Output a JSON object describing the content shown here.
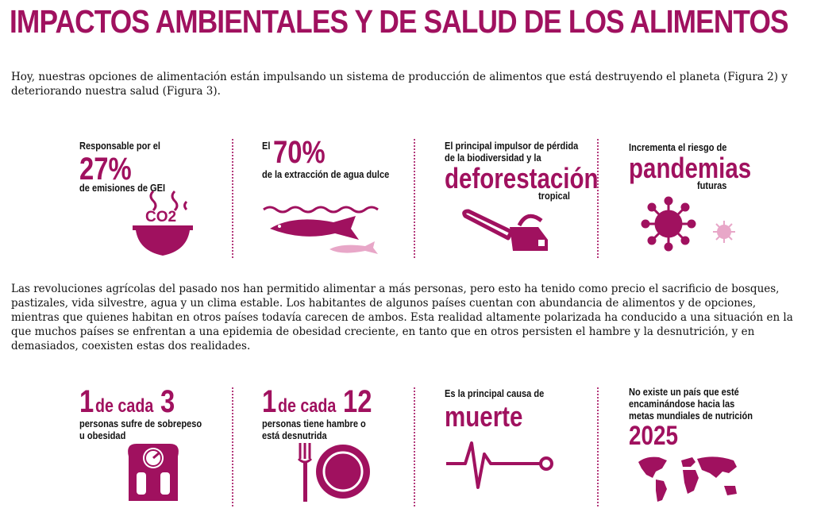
{
  "title": "IMPACTOS AMBIENTALES Y DE SALUD DE LOS ALIMENTOS",
  "intro": "Hoy, nuestras opciones de alimentación están impulsando un sistema de producción de alimentos que está destruyendo el planeta (Figura 2) y deteriorando nuestra salud (Figura 3).",
  "env": {
    "ghg": {
      "pre": "Responsable por el",
      "big": "27%",
      "post": "de emisiones de GEI",
      "icon": "bowl-co2-icon",
      "icon_text": "CO2"
    },
    "water": {
      "pre": "El",
      "big": "70%",
      "post": "de la extracción de agua dulce",
      "icon": "fish-icon"
    },
    "biodiversity": {
      "pre1": "El principal impulsor de pérdida",
      "pre2": "de la biodiversidad y la",
      "big": "deforestación",
      "post": "tropical",
      "icon": "chainsaw-icon"
    },
    "pandemics": {
      "pre": "Incrementa el riesgo de",
      "big": "pandemias",
      "post": "futuras",
      "icon": "virus-icon"
    }
  },
  "body": "Las revoluciones agrícolas del pasado nos han permitido alimentar a más personas, pero esto ha tenido como precio el sacrificio de bosques, pastizales, vida silvestre, agua y un clima estable. Los habitantes de algunos países cuentan con abundancia de alimentos y de opciones, mientras que quienes habitan en otros países todavía carecen de ambos. Esta realidad altamente polarizada ha conducido a una situación en la que muchos países se enfrentan a una epidemia de obesidad creciente, en tanto que en otros persisten el hambre y la desnutrición, y en demasiados, coexisten estas dos realidades.",
  "health": {
    "overweight": {
      "n1": "1",
      "mid": "de cada",
      "n2": "3",
      "post1": "personas sufre de sobrepeso",
      "post2": "u obesidad",
      "icon": "scale-icon"
    },
    "hunger": {
      "n1": "1",
      "mid": "de cada",
      "n2": "12",
      "post1": "personas tiene hambre o",
      "post2": "está desnutrida",
      "icon": "plate-fork-icon"
    },
    "death": {
      "pre": "Es la principal causa de",
      "big": "muerte",
      "icon": "heartbeat-icon"
    },
    "nutrition": {
      "pre1": "No existe un país que esté",
      "pre2": "encaminándose hacia las",
      "pre3": "metas mundiales de nutrición",
      "big": "2025",
      "icon": "world-map-icon"
    }
  },
  "colors": {
    "accent": "#a0115f",
    "accent_light": "#e8a7c8"
  }
}
